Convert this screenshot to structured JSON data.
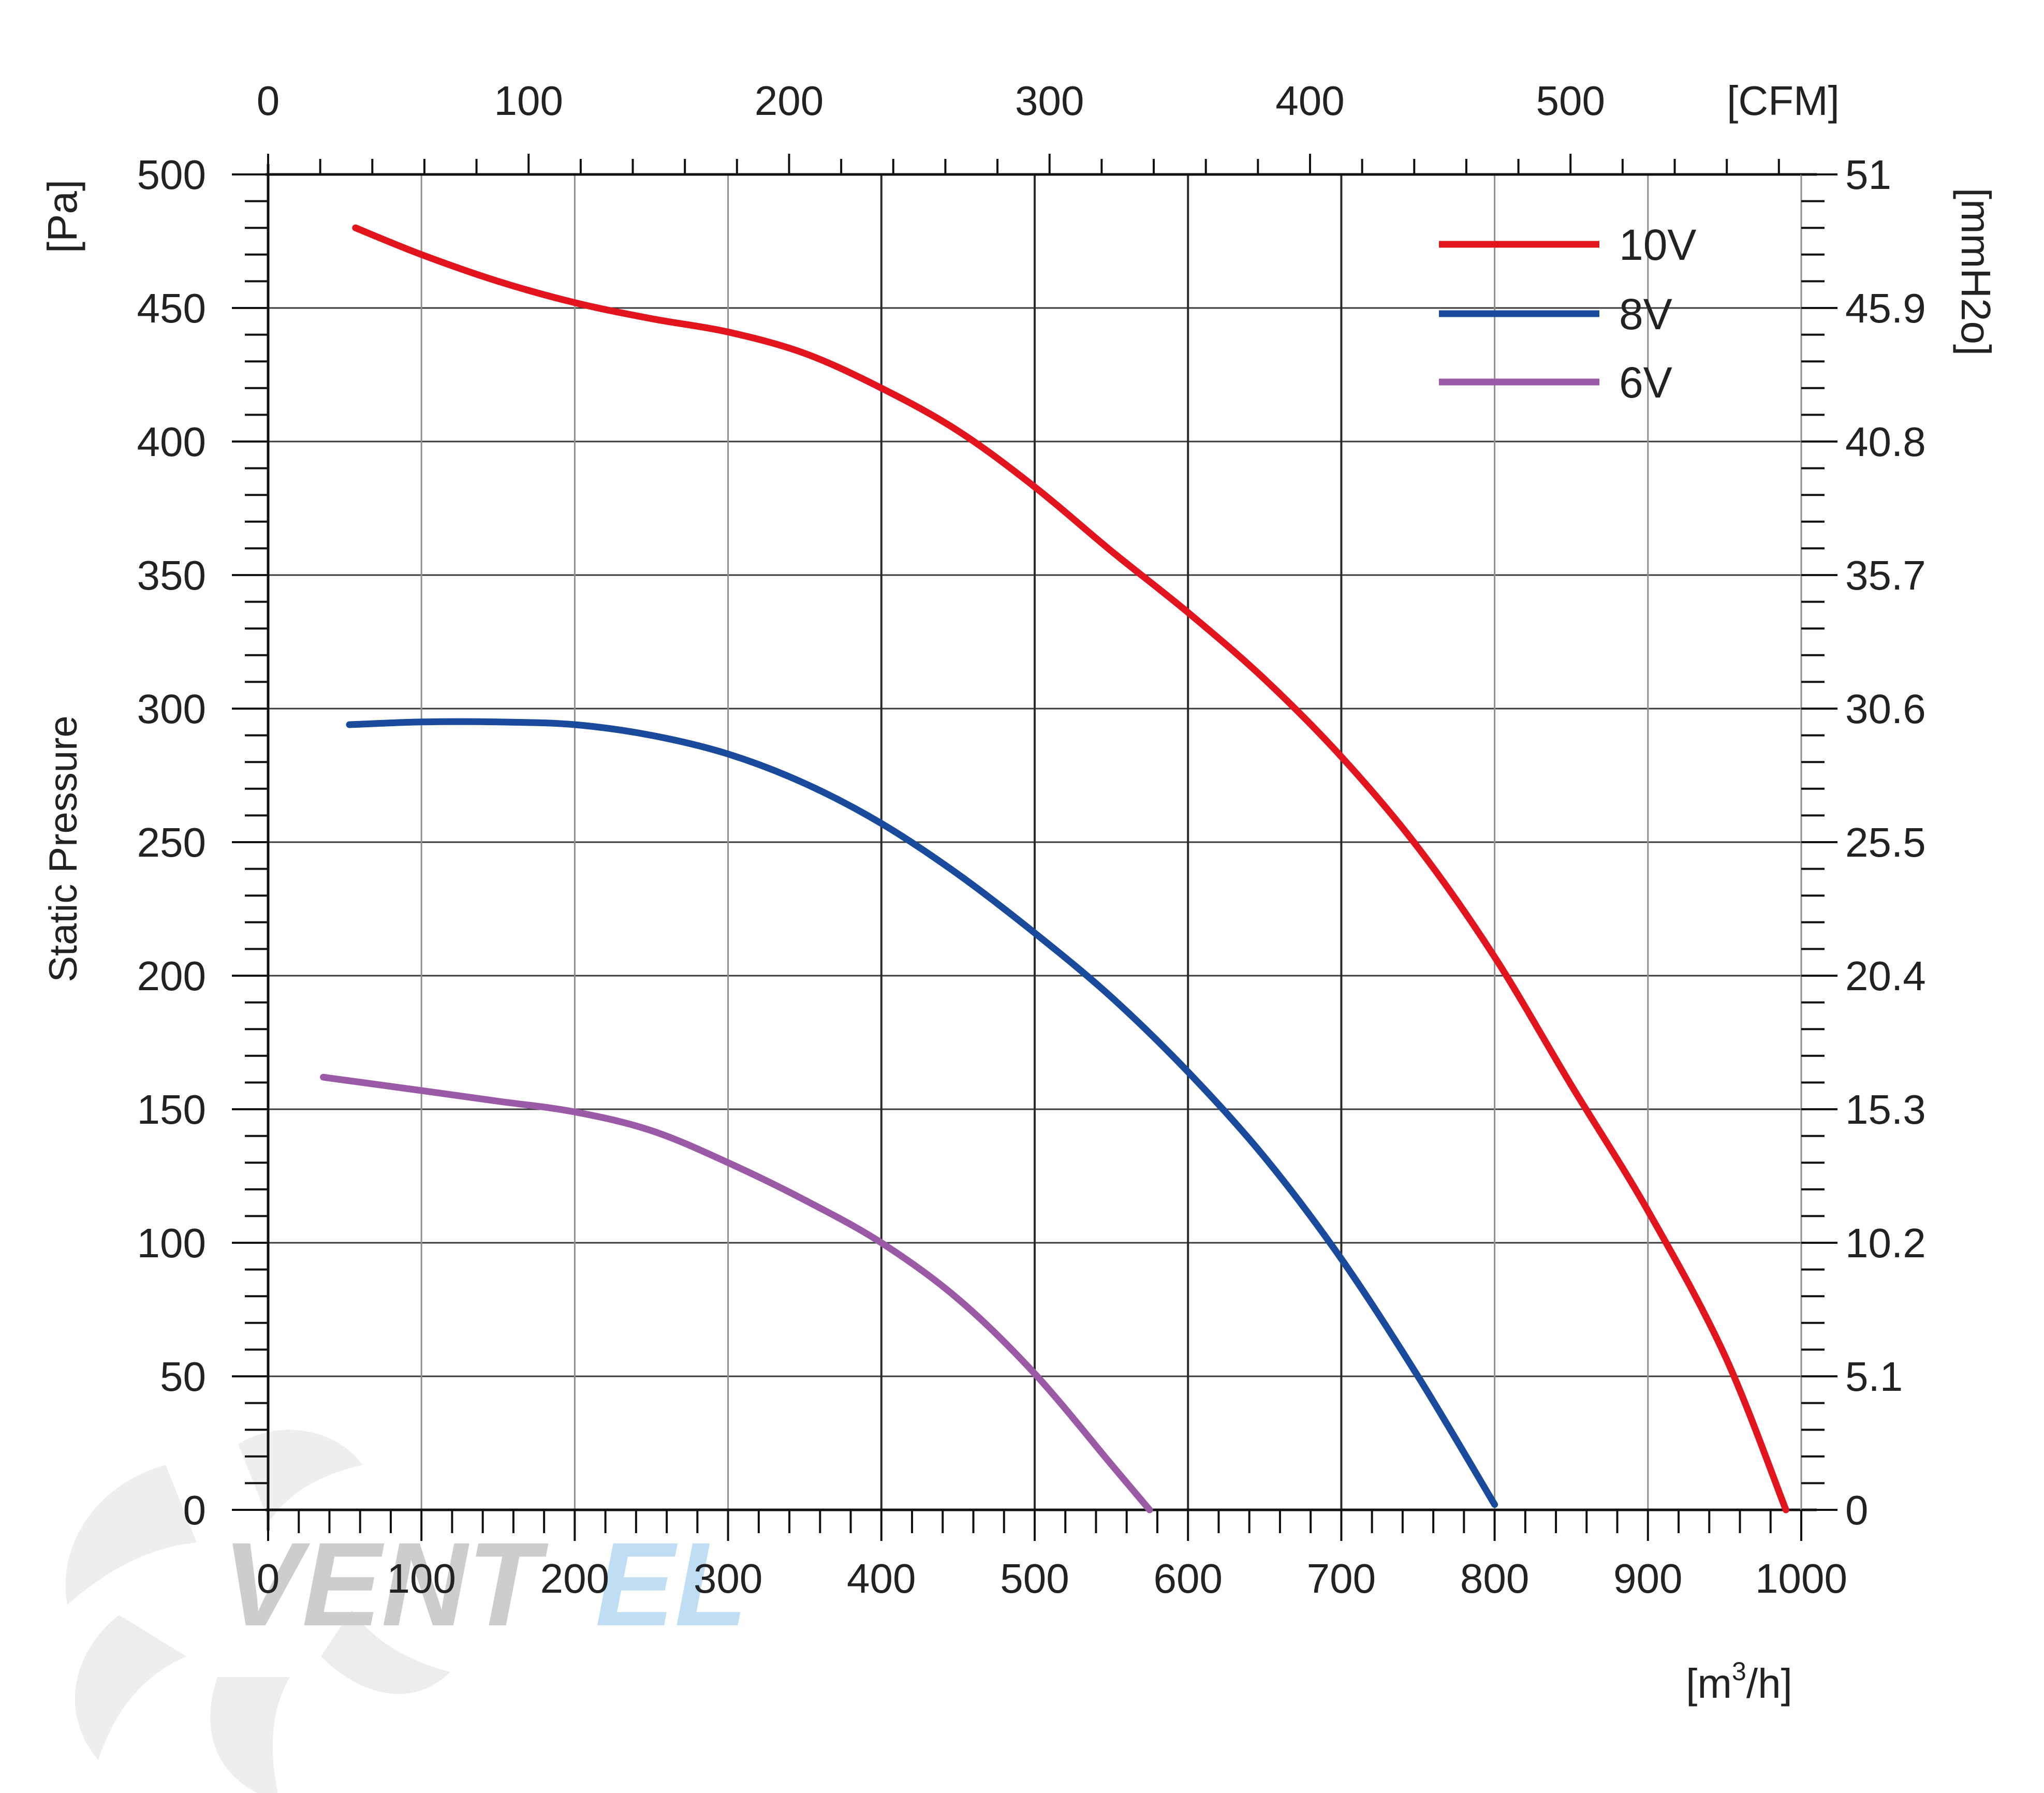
{
  "chart_data": {
    "type": "line",
    "x": {
      "label": "[m³/h]",
      "label_base": "[m",
      "label_sup": "3",
      "label_tail": "/h]",
      "range": [
        0,
        1000
      ],
      "ticks": [
        "0",
        "100",
        "200",
        "300",
        "400",
        "500",
        "600",
        "700",
        "800",
        "900",
        "1000"
      ]
    },
    "x2": {
      "label": "[CFM]",
      "ticks": [
        "0",
        "100",
        "200",
        "300",
        "400",
        "500"
      ]
    },
    "y": {
      "title": "Static Pressure",
      "unit": "[Pa]",
      "range": [
        0,
        500
      ],
      "ticks": [
        "0",
        "50",
        "100",
        "150",
        "200",
        "250",
        "300",
        "350",
        "400",
        "450",
        "500"
      ]
    },
    "y2": {
      "unit": "[mmH2o]",
      "ticks": [
        "0",
        "5.1",
        "10.2",
        "15.3",
        "20.4",
        "25.5",
        "30.6",
        "35.7",
        "40.8",
        "45.9",
        "51"
      ]
    },
    "grid": true,
    "legend_position": "top-right",
    "series": [
      {
        "name": "10V",
        "color": "#e2141e",
        "points": [
          [
            57,
            480
          ],
          [
            100,
            470
          ],
          [
            150,
            460
          ],
          [
            200,
            452
          ],
          [
            250,
            446
          ],
          [
            300,
            441
          ],
          [
            350,
            433
          ],
          [
            400,
            420
          ],
          [
            450,
            404
          ],
          [
            500,
            383
          ],
          [
            550,
            359
          ],
          [
            600,
            336
          ],
          [
            650,
            311
          ],
          [
            700,
            282
          ],
          [
            750,
            248
          ],
          [
            800,
            207
          ],
          [
            850,
            159
          ],
          [
            900,
            112
          ],
          [
            950,
            58
          ],
          [
            990,
            0
          ]
        ]
      },
      {
        "name": "8V",
        "color": "#1a4a9c",
        "points": [
          [
            53,
            294
          ],
          [
            100,
            295
          ],
          [
            150,
            295
          ],
          [
            200,
            294
          ],
          [
            250,
            290
          ],
          [
            300,
            283
          ],
          [
            350,
            272
          ],
          [
            400,
            257
          ],
          [
            450,
            238
          ],
          [
            500,
            216
          ],
          [
            550,
            192
          ],
          [
            600,
            164
          ],
          [
            650,
            132
          ],
          [
            700,
            94
          ],
          [
            750,
            50
          ],
          [
            800,
            2
          ]
        ]
      },
      {
        "name": "6V",
        "color": "#9b5aa6",
        "points": [
          [
            36,
            162
          ],
          [
            100,
            157
          ],
          [
            150,
            153
          ],
          [
            200,
            149
          ],
          [
            250,
            142
          ],
          [
            300,
            130
          ],
          [
            350,
            116
          ],
          [
            400,
            100
          ],
          [
            450,
            79
          ],
          [
            500,
            51
          ],
          [
            550,
            17
          ],
          [
            575,
            0
          ]
        ]
      }
    ]
  },
  "watermark": {
    "text_gray": "VENT",
    "text_blue": "EL",
    "gray_color": "#c8c8c8",
    "blue_color": "#b9dbf3"
  }
}
